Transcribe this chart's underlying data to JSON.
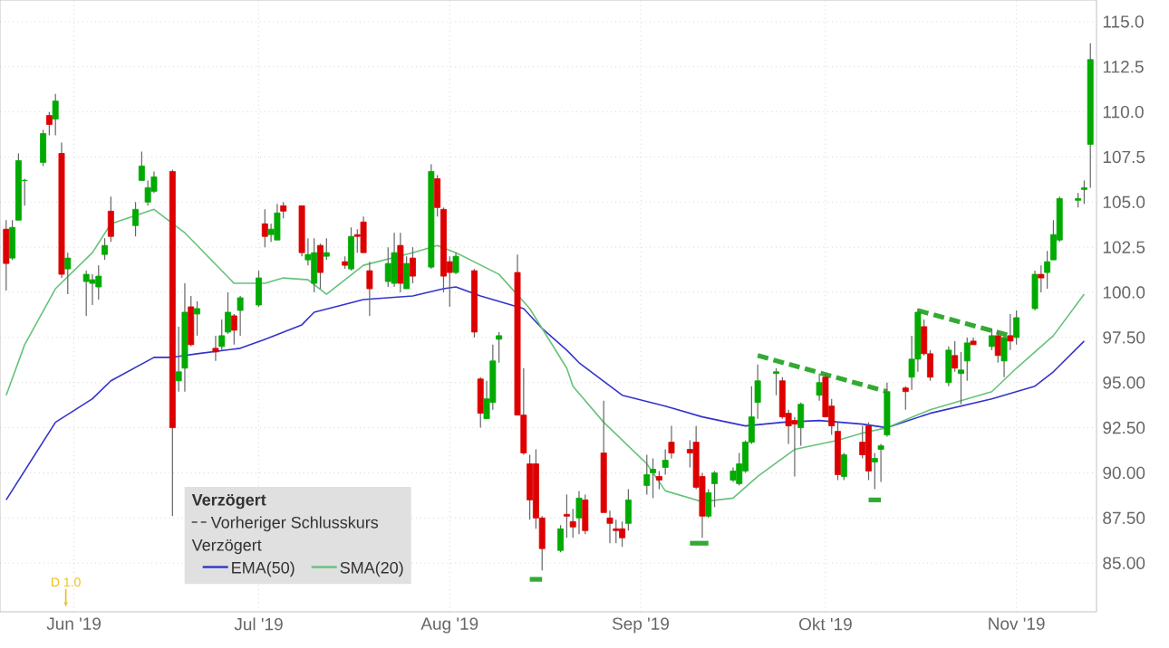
{
  "chart_data": {
    "type": "candlestick",
    "x": [
      "2019-05-21",
      "2019-05-22",
      "2019-05-23",
      "2019-05-24",
      "2019-05-27",
      "2019-05-28",
      "2019-05-29",
      "2019-05-30",
      "2019-05-31",
      "2019-06-03",
      "2019-06-04",
      "2019-06-05",
      "2019-06-06",
      "2019-06-07",
      "2019-06-11",
      "2019-06-12",
      "2019-06-13",
      "2019-06-14",
      "2019-06-17",
      "2019-06-18",
      "2019-06-19",
      "2019-06-20",
      "2019-06-21",
      "2019-06-24",
      "2019-06-25",
      "2019-06-26",
      "2019-06-27",
      "2019-06-28",
      "2019-07-01",
      "2019-07-02",
      "2019-07-03",
      "2019-07-04",
      "2019-07-05",
      "2019-07-08",
      "2019-07-09",
      "2019-07-10",
      "2019-07-11",
      "2019-07-12",
      "2019-07-15",
      "2019-07-16",
      "2019-07-17",
      "2019-07-18",
      "2019-07-19",
      "2019-07-22",
      "2019-07-23",
      "2019-07-24",
      "2019-07-25",
      "2019-07-26",
      "2019-07-29",
      "2019-07-30",
      "2019-07-31",
      "2019-08-01",
      "2019-08-02",
      "2019-08-05",
      "2019-08-06",
      "2019-08-07",
      "2019-08-08",
      "2019-08-09",
      "2019-08-12",
      "2019-08-13",
      "2019-08-14",
      "2019-08-15",
      "2019-08-16",
      "2019-08-19",
      "2019-08-20",
      "2019-08-21",
      "2019-08-22",
      "2019-08-23",
      "2019-08-26",
      "2019-08-27",
      "2019-08-28",
      "2019-08-29",
      "2019-08-30",
      "2019-09-02",
      "2019-09-03",
      "2019-09-04",
      "2019-09-05",
      "2019-09-06",
      "2019-09-09",
      "2019-09-10",
      "2019-09-11",
      "2019-09-12",
      "2019-09-13",
      "2019-09-16",
      "2019-09-17",
      "2019-09-18",
      "2019-09-19",
      "2019-09-20",
      "2019-09-23",
      "2019-09-24",
      "2019-09-25",
      "2019-09-26",
      "2019-09-27",
      "2019-09-30",
      "2019-10-01",
      "2019-10-02",
      "2019-10-03",
      "2019-10-04",
      "2019-10-07",
      "2019-10-08",
      "2019-10-09",
      "2019-10-10",
      "2019-10-11",
      "2019-10-14",
      "2019-10-15",
      "2019-10-16",
      "2019-10-17",
      "2019-10-18",
      "2019-10-21",
      "2019-10-22",
      "2019-10-23",
      "2019-10-24",
      "2019-10-25",
      "2019-10-28",
      "2019-10-29",
      "2019-10-30",
      "2019-10-31",
      "2019-11-01",
      "2019-11-04",
      "2019-11-05",
      "2019-11-06",
      "2019-11-07",
      "2019-11-08",
      "2019-11-11",
      "2019-11-12",
      "2019-11-13"
    ],
    "ohlc": [
      [
        103.5,
        104.0,
        100.1,
        101.6
      ],
      [
        101.9,
        104.0,
        101.8,
        103.6
      ],
      [
        104.0,
        107.7,
        104.0,
        107.3
      ],
      [
        106.2,
        106.3,
        104.8,
        106.2
      ],
      [
        107.2,
        109.0,
        107.0,
        108.8
      ],
      [
        109.8,
        110.0,
        108.7,
        109.3
      ],
      [
        109.6,
        111.0,
        108.7,
        110.6
      ],
      [
        107.7,
        108.3,
        100.8,
        101.0
      ],
      [
        101.3,
        102.2,
        99.9,
        101.9
      ],
      [
        100.6,
        101.2,
        98.7,
        101.0
      ],
      [
        100.5,
        101.0,
        99.3,
        100.7
      ],
      [
        100.3,
        101.5,
        99.6,
        100.9
      ],
      [
        102.1,
        103.0,
        101.8,
        102.6
      ],
      [
        104.5,
        105.3,
        102.8,
        103.1
      ],
      [
        103.7,
        105.0,
        103.1,
        104.6
      ],
      [
        106.2,
        107.8,
        106.2,
        107.0
      ],
      [
        105.0,
        106.2,
        104.8,
        105.8
      ],
      [
        105.6,
        106.7,
        105.5,
        106.4
      ],
      [
        106.7,
        106.8,
        87.6,
        92.5
      ],
      [
        95.1,
        98.1,
        94.5,
        95.6
      ],
      [
        95.8,
        100.5,
        94.5,
        98.9
      ],
      [
        99.2,
        99.8,
        97.0,
        97.1
      ],
      [
        98.8,
        99.5,
        97.6,
        99.1
      ],
      [
        96.9,
        97.6,
        96.2,
        96.7
      ],
      [
        97.0,
        98.5,
        96.8,
        97.6
      ],
      [
        97.8,
        100.0,
        97.7,
        98.9
      ],
      [
        98.7,
        98.8,
        97.1,
        97.9
      ],
      [
        99.0,
        99.8,
        97.6,
        99.7
      ],
      [
        99.3,
        101.2,
        99.2,
        100.8
      ],
      [
        103.8,
        104.6,
        102.5,
        103.1
      ],
      [
        103.2,
        103.8,
        102.8,
        103.5
      ],
      [
        102.9,
        104.9,
        102.9,
        104.4
      ],
      [
        104.8,
        105.0,
        104.1,
        104.5
      ],
      [
        104.8,
        104.8,
        102.0,
        102.2
      ],
      [
        101.8,
        103.0,
        101.5,
        102.1
      ],
      [
        100.5,
        103.0,
        100.0,
        102.2
      ],
      [
        102.6,
        102.7,
        100.2,
        101.1
      ],
      [
        102.0,
        103.0,
        101.8,
        102.2
      ],
      [
        101.7,
        102.0,
        101.3,
        101.5
      ],
      [
        101.3,
        103.6,
        101.2,
        103.1
      ],
      [
        103.2,
        103.5,
        102.2,
        103.1
      ],
      [
        103.9,
        104.2,
        102.2,
        102.2
      ],
      [
        101.2,
        101.7,
        98.7,
        100.2
      ],
      [
        100.6,
        102.5,
        100.3,
        101.6
      ],
      [
        100.5,
        103.3,
        100.3,
        102.2
      ],
      [
        102.6,
        103.3,
        100.0,
        100.5
      ],
      [
        100.2,
        102.0,
        100.2,
        101.6
      ],
      [
        101.9,
        102.5,
        100.5,
        100.9
      ],
      [
        101.4,
        107.1,
        101.3,
        106.7
      ],
      [
        106.3,
        106.5,
        104.2,
        104.7
      ],
      [
        104.6,
        104.7,
        100.0,
        100.9
      ],
      [
        101.7,
        102.0,
        99.2,
        101.1
      ],
      [
        101.1,
        102.2,
        101.0,
        102.0
      ],
      [
        101.2,
        101.3,
        97.5,
        97.8
      ],
      [
        95.2,
        95.3,
        92.5,
        93.3
      ],
      [
        93.0,
        95.1,
        93.0,
        94.1
      ],
      [
        93.9,
        97.1,
        93.5,
        96.2
      ],
      [
        97.4,
        97.8,
        96.1,
        97.6
      ],
      [
        101.1,
        102.1,
        93.2,
        93.2
      ],
      [
        93.2,
        95.8,
        91.0,
        91.1
      ],
      [
        90.5,
        91.0,
        87.4,
        88.5
      ],
      [
        90.5,
        91.3,
        86.9,
        87.5
      ],
      [
        87.5,
        87.6,
        84.6,
        85.8
      ],
      [
        85.7,
        87.1,
        85.6,
        86.9
      ],
      [
        87.7,
        88.8,
        86.4,
        87.6
      ],
      [
        87.3,
        88.0,
        86.4,
        87.0
      ],
      [
        87.5,
        89.0,
        86.6,
        88.6
      ],
      [
        88.5,
        88.8,
        86.6,
        86.8
      ],
      [
        91.1,
        94.0,
        87.8,
        87.8
      ],
      [
        87.5,
        87.9,
        86.1,
        87.2
      ],
      [
        86.9,
        87.4,
        86.1,
        86.8
      ],
      [
        86.9,
        87.3,
        85.9,
        86.4
      ],
      [
        87.2,
        89.1,
        86.8,
        88.5
      ],
      [
        89.3,
        91.0,
        88.8,
        89.9
      ],
      [
        90.0,
        90.8,
        88.6,
        90.2
      ],
      [
        89.8,
        90.1,
        89.1,
        89.6
      ],
      [
        90.3,
        91.3,
        89.9,
        90.7
      ],
      [
        91.7,
        92.6,
        90.8,
        91.1
      ],
      [
        91.3,
        91.8,
        90.3,
        91.1
      ],
      [
        91.7,
        92.6,
        89.1,
        89.2
      ],
      [
        89.8,
        90.0,
        86.4,
        87.6
      ],
      [
        87.6,
        89.1,
        87.5,
        88.9
      ],
      [
        89.4,
        90.1,
        88.1,
        90.0
      ],
      [
        89.6,
        90.3,
        89.5,
        90.1
      ],
      [
        89.4,
        91.1,
        89.3,
        90.5
      ],
      [
        90.1,
        91.8,
        90.0,
        91.7
      ],
      [
        91.7,
        94.8,
        91.6,
        93.1
      ],
      [
        93.9,
        96.0,
        93.0,
        95.1
      ],
      [
        95.5,
        95.8,
        94.3,
        95.6
      ],
      [
        95.1,
        95.3,
        93.0,
        93.1
      ],
      [
        93.3,
        93.5,
        91.6,
        92.6
      ],
      [
        92.9,
        93.1,
        89.8,
        92.7
      ],
      [
        92.5,
        93.9,
        91.5,
        93.8
      ],
      [
        94.3,
        95.5,
        94.0,
        95.0
      ],
      [
        95.3,
        95.5,
        93.1,
        93.1
      ],
      [
        93.7,
        94.1,
        92.1,
        92.6
      ],
      [
        92.3,
        92.8,
        89.6,
        89.9
      ],
      [
        89.8,
        91.1,
        89.6,
        91.0
      ],
      [
        91.7,
        92.6,
        90.8,
        91.0
      ],
      [
        92.6,
        92.8,
        89.6,
        90.1
      ],
      [
        90.6,
        91.1,
        89.1,
        90.8
      ],
      [
        91.3,
        91.6,
        89.5,
        91.5
      ],
      [
        92.1,
        95.0,
        92.0,
        94.5
      ],
      [
        94.7,
        94.8,
        93.5,
        94.5
      ],
      [
        95.3,
        97.6,
        94.6,
        96.3
      ],
      [
        96.3,
        99.1,
        95.6,
        98.9
      ],
      [
        98.1,
        98.5,
        96.5,
        96.6
      ],
      [
        96.6,
        96.8,
        95.1,
        95.3
      ],
      [
        95.0,
        97.0,
        94.8,
        96.8
      ],
      [
        96.5,
        97.3,
        95.6,
        95.8
      ],
      [
        95.5,
        96.7,
        93.8,
        95.7
      ],
      [
        96.2,
        97.5,
        95.1,
        97.2
      ],
      [
        97.3,
        97.5,
        97.1,
        97.1
      ],
      [
        97.0,
        98.0,
        96.8,
        97.6
      ],
      [
        97.6,
        97.8,
        96.1,
        96.5
      ],
      [
        96.2,
        97.6,
        95.3,
        97.5
      ],
      [
        97.6,
        98.8,
        96.8,
        97.3
      ],
      [
        97.5,
        99.0,
        97.1,
        98.6
      ],
      [
        99.1,
        101.2,
        99.0,
        101.0
      ],
      [
        101.0,
        101.5,
        100.0,
        100.8
      ],
      [
        101.1,
        102.3,
        100.2,
        101.7
      ],
      [
        101.8,
        104.0,
        101.8,
        103.2
      ],
      [
        102.9,
        105.3,
        102.8,
        105.2
      ],
      [
        105.1,
        105.5,
        104.7,
        105.2
      ],
      [
        105.7,
        106.2,
        104.9,
        105.8
      ],
      [
        108.2,
        113.8,
        105.8,
        112.9
      ]
    ],
    "series": [
      {
        "type": "line",
        "name": "EMA(50)",
        "color": "#3333cc",
        "x": [
          "2019-05-21",
          "2019-05-29",
          "2019-06-04",
          "2019-06-07",
          "2019-06-14",
          "2019-06-17",
          "2019-06-21",
          "2019-06-28",
          "2019-07-02",
          "2019-07-08",
          "2019-07-10",
          "2019-07-18",
          "2019-07-26",
          "2019-07-31",
          "2019-08-02",
          "2019-08-06",
          "2019-08-13",
          "2019-08-16",
          "2019-08-20",
          "2019-08-22",
          "2019-08-29",
          "2019-09-05",
          "2019-09-11",
          "2019-09-18",
          "2019-09-24",
          "2019-09-30",
          "2019-10-07",
          "2019-10-11",
          "2019-10-18",
          "2019-10-28",
          "2019-11-04",
          "2019-11-07",
          "2019-11-12"
        ],
        "values": [
          88.5,
          92.8,
          94.1,
          95.1,
          96.4,
          96.4,
          96.6,
          96.9,
          97.4,
          98.2,
          98.9,
          99.6,
          99.8,
          100.2,
          100.3,
          99.8,
          99.1,
          98.0,
          96.8,
          96.1,
          94.3,
          93.7,
          93.1,
          92.6,
          92.8,
          92.9,
          92.7,
          92.5,
          93.3,
          94.1,
          94.8,
          95.6,
          97.3
        ]
      },
      {
        "type": "line",
        "name": "SMA(20)",
        "color": "#66c27a",
        "x": [
          "2019-05-21",
          "2019-05-24",
          "2019-05-29",
          "2019-06-04",
          "2019-06-07",
          "2019-06-14",
          "2019-06-19",
          "2019-06-27",
          "2019-07-02",
          "2019-07-05",
          "2019-07-09",
          "2019-07-12",
          "2019-07-18",
          "2019-07-26",
          "2019-07-30",
          "2019-08-02",
          "2019-08-09",
          "2019-08-14",
          "2019-08-20",
          "2019-08-21",
          "2019-08-26",
          "2019-09-02",
          "2019-09-05",
          "2019-09-11",
          "2019-09-16",
          "2019-09-20",
          "2019-09-26",
          "2019-10-03",
          "2019-10-07",
          "2019-10-11",
          "2019-10-18",
          "2019-10-28",
          "2019-11-01",
          "2019-11-07",
          "2019-11-12"
        ],
        "values": [
          94.3,
          97.1,
          100.2,
          102.2,
          103.8,
          104.6,
          103.3,
          100.5,
          100.5,
          100.8,
          100.7,
          99.9,
          101.5,
          102.2,
          102.6,
          102.2,
          101.0,
          99.1,
          95.8,
          94.8,
          92.8,
          90.5,
          89.0,
          88.4,
          88.6,
          89.8,
          91.3,
          91.8,
          92.2,
          92.5,
          93.5,
          94.5,
          95.8,
          97.6,
          99.9
        ]
      },
      {
        "type": "line",
        "color": "#33aa33",
        "line_style": "dashed",
        "x": [
          "2019-09-20",
          "2019-10-11"
        ],
        "values": [
          96.5,
          94.5
        ]
      },
      {
        "type": "line",
        "color": "#33aa33",
        "line_style": "dashed",
        "x": [
          "2019-10-16",
          "2019-10-31"
        ],
        "values": [
          99.0,
          97.6
        ]
      },
      {
        "type": "line",
        "color": "#33aa33",
        "line_style": "solid",
        "x": [
          "2019-08-14",
          "2019-08-16"
        ],
        "values": [
          84.1,
          84.1
        ]
      },
      {
        "type": "line",
        "color": "#33aa33",
        "line_style": "solid",
        "x": [
          "2019-09-09",
          "2019-09-12"
        ],
        "values": [
          86.1,
          86.1
        ]
      },
      {
        "type": "line",
        "color": "#33aa33",
        "line_style": "solid",
        "x": [
          "2019-10-08",
          "2019-10-10"
        ],
        "values": [
          88.5,
          88.5
        ]
      }
    ],
    "xlim": [
      "2019-05-20",
      "2019-11-14"
    ],
    "ylim": [
      82.3,
      116.2
    ],
    "xticks": [
      {
        "value": "2019-06-01",
        "label": "Jun '19"
      },
      {
        "value": "2019-07-01",
        "label": "Jul '19"
      },
      {
        "value": "2019-08-01",
        "label": "Aug '19"
      },
      {
        "value": "2019-09-01",
        "label": "Sep '19"
      },
      {
        "value": "2019-10-01",
        "label": "Okt '19"
      },
      {
        "value": "2019-11-01",
        "label": "Nov '19"
      }
    ],
    "yticks": [
      {
        "value": 85,
        "label": "85.00"
      },
      {
        "value": 87.5,
        "label": "87.50"
      },
      {
        "value": 90,
        "label": "90.00"
      },
      {
        "value": 92.5,
        "label": "92.50"
      },
      {
        "value": 95,
        "label": "95.00"
      },
      {
        "value": 97.5,
        "label": "97.50"
      },
      {
        "value": 100,
        "label": "100.0"
      },
      {
        "value": 102.5,
        "label": "102.5"
      },
      {
        "value": 105,
        "label": "105.0"
      },
      {
        "value": 107.5,
        "label": "107.5"
      },
      {
        "value": 110,
        "label": "110.0"
      },
      {
        "value": 112.5,
        "label": "112.5"
      },
      {
        "value": 115,
        "label": "115.0"
      }
    ],
    "grid": true,
    "legend": "bottom left",
    "marker": "none",
    "legend_title": "Verzögert",
    "annotations": [
      "Vorheriger Schlusskurs",
      "Verzögert",
      "D 1.0"
    ]
  }
}
